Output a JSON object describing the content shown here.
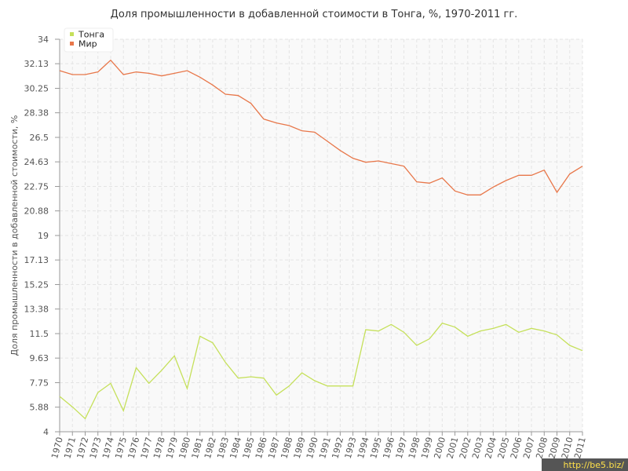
{
  "chart_data": {
    "type": "line",
    "title": "Доля промышленности в добавленной стоимости в Тонга, %, 1970-2011 гг.",
    "y_label": "Доля промышленности в добавленной стоимости, %",
    "watermark": "http://be5.biz/",
    "categories": [
      "1970",
      "1971",
      "1972",
      "1973",
      "1974",
      "1975",
      "1976",
      "1977",
      "1978",
      "1979",
      "1980",
      "1981",
      "1982",
      "1983",
      "1984",
      "1985",
      "1986",
      "1987",
      "1988",
      "1989",
      "1990",
      "1991",
      "1992",
      "1993",
      "1994",
      "1995",
      "1996",
      "1997",
      "1998",
      "1999",
      "2000",
      "2001",
      "2002",
      "2003",
      "2004",
      "2005",
      "2006",
      "2007",
      "2008",
      "2009",
      "2010",
      "2011"
    ],
    "series": [
      {
        "name": "Тонга",
        "color": "#c5e05a",
        "values": [
          6.7,
          5.9,
          5.0,
          7.0,
          7.7,
          5.6,
          8.9,
          7.7,
          8.7,
          9.8,
          7.3,
          11.3,
          10.8,
          9.3,
          8.1,
          8.2,
          8.1,
          6.8,
          7.5,
          8.5,
          7.9,
          7.5,
          7.5,
          7.5,
          11.8,
          11.7,
          12.2,
          11.6,
          10.6,
          11.1,
          12.3,
          12.0,
          11.3,
          11.7,
          11.9,
          12.2,
          11.6,
          11.9,
          11.7,
          11.4,
          10.6,
          10.2
        ]
      },
      {
        "name": "Мир",
        "color": "#e8774a",
        "values": [
          31.6,
          31.3,
          31.3,
          31.5,
          32.4,
          31.3,
          31.5,
          31.4,
          31.2,
          31.4,
          31.6,
          31.1,
          30.5,
          29.8,
          29.7,
          29.1,
          27.9,
          27.6,
          27.4,
          27.0,
          26.9,
          26.2,
          25.5,
          24.9,
          24.6,
          24.7,
          24.5,
          24.3,
          23.1,
          23.0,
          23.4,
          22.4,
          22.1,
          22.1,
          22.7,
          23.2,
          23.6,
          23.6,
          24.0,
          22.3,
          23.7,
          24.3
        ]
      }
    ],
    "ylim": [
      4,
      34
    ],
    "yticks": [
      4,
      5.88,
      7.75,
      9.63,
      11.5,
      13.38,
      15.25,
      17.13,
      19,
      20.88,
      22.75,
      24.63,
      26.5,
      28.38,
      30.25,
      32.13,
      34
    ],
    "grid": true
  }
}
